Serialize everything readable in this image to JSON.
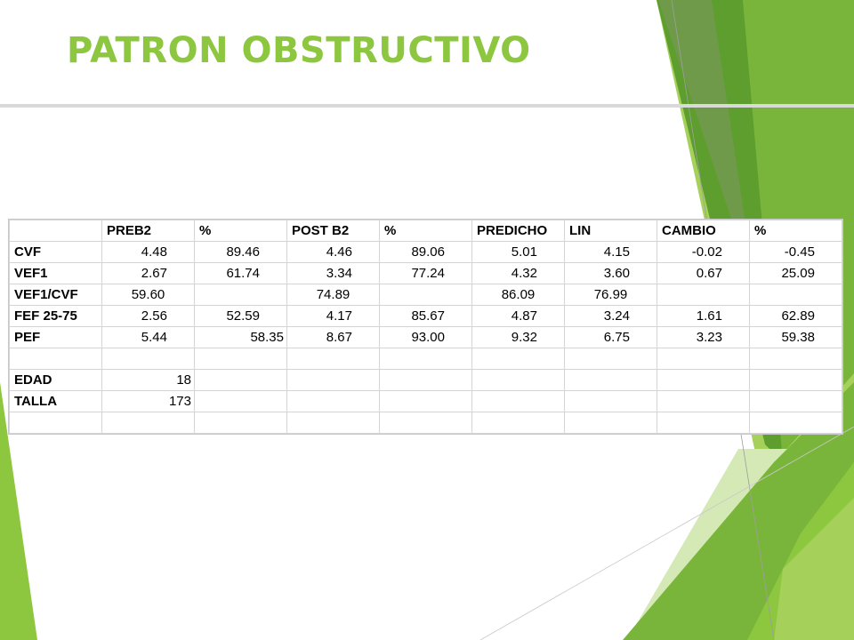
{
  "title": "PATRON OBSTRUCTIVO",
  "colors": {
    "title": "#8dc63f",
    "accent_dark": "#5d9e2e",
    "accent_mid": "#7ab53b",
    "accent_light": "#a5d05a",
    "accent_pale": "#d4e9b5"
  },
  "table": {
    "headers": [
      "",
      "PREB2",
      "%",
      "POST B2",
      "%",
      "PREDICHO",
      "LIN",
      "CAMBIO",
      "%"
    ],
    "rows": [
      {
        "label": "CVF",
        "cells": [
          "4.48",
          "89.46",
          "4.46",
          "89.06",
          "5.01",
          "4.15",
          "-0.02",
          "-0.45"
        ]
      },
      {
        "label": "VEF1",
        "cells": [
          "2.67",
          "61.74",
          "3.34",
          "77.24",
          "4.32",
          "3.60",
          "0.67",
          "25.09"
        ]
      },
      {
        "label": "VEF1/CVF",
        "cells": [
          "59.60",
          "",
          "74.89",
          "",
          "86.09",
          "76.99",
          "",
          ""
        ]
      },
      {
        "label": "FEF 25-75",
        "cells": [
          "2.56",
          "52.59",
          "4.17",
          "85.67",
          "4.87",
          "3.24",
          "1.61",
          "62.89"
        ]
      },
      {
        "label": "PEF",
        "cells": [
          "5.44",
          "58.35",
          "8.67",
          "93.00",
          "9.32",
          "6.75",
          "3.23",
          "59.38"
        ]
      },
      {
        "label": "",
        "cells": [
          "",
          "",
          "",
          "",
          "",
          "",
          "",
          ""
        ]
      },
      {
        "label": "EDAD",
        "cells": [
          "18",
          "",
          "",
          "",
          "",
          "",
          "",
          ""
        ]
      },
      {
        "label": "TALLA",
        "cells": [
          "173",
          "",
          "",
          "",
          "",
          "",
          "",
          ""
        ]
      },
      {
        "label": "",
        "cells": [
          "",
          "",
          "",
          "",
          "",
          "",
          "",
          ""
        ]
      }
    ]
  }
}
